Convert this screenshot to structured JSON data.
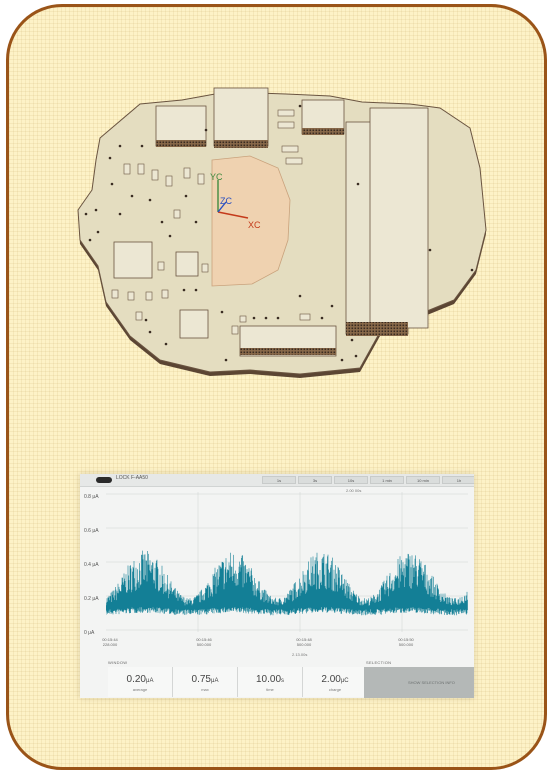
{
  "colors": {
    "frame": "#9a5418",
    "background": "#fdf2c7",
    "board_fill": "#e4ddc0",
    "board_edge": "#6a5440",
    "cutout": "#efd2b0",
    "signal": "#137f96"
  },
  "board": {
    "axis_labels": {
      "y": "YC",
      "z": "ZC",
      "x": "XC"
    }
  },
  "scope": {
    "title": "LOCK F-AA50",
    "tabs": [
      "1s",
      "3s",
      "10s",
      "1 min",
      "10 min",
      "1h"
    ],
    "window_label": "2.00 00s",
    "y_ticks": [
      "0.8 μA",
      "0.6 μA",
      "0.4 μA",
      "0.2 μA",
      "0 μA"
    ],
    "x_ticks": [
      {
        "time": "00:15:44",
        "sub": "228.000"
      },
      {
        "time": "00:15:46",
        "sub": "500.000"
      },
      {
        "time": "00:15:48",
        "sub": "500.000"
      },
      {
        "time": "00:15:50",
        "sub": "500.000"
      }
    ],
    "x_window": "2.13.00s",
    "window_section": "WINDOW",
    "selection_section": "SELECTION",
    "stats": [
      {
        "value": "0.20",
        "unit": "μA",
        "label": "average"
      },
      {
        "value": "0.75",
        "unit": "μA",
        "label": "max"
      },
      {
        "value": "10.00",
        "unit": "s",
        "label": "time"
      },
      {
        "value": "2.00",
        "unit": "μC",
        "label": "charge"
      }
    ],
    "selection_text": "SHOW SELECTION INFO"
  }
}
